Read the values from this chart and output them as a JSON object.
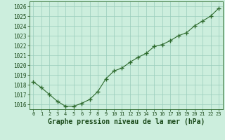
{
  "x": [
    0,
    1,
    2,
    3,
    4,
    5,
    6,
    7,
    8,
    9,
    10,
    11,
    12,
    13,
    14,
    15,
    16,
    17,
    18,
    19,
    20,
    21,
    22,
    23
  ],
  "y": [
    1018.3,
    1017.7,
    1017.0,
    1016.3,
    1015.8,
    1015.8,
    1016.1,
    1016.5,
    1017.3,
    1018.6,
    1019.4,
    1019.7,
    1020.3,
    1020.8,
    1021.2,
    1021.9,
    1022.1,
    1022.5,
    1023.0,
    1023.3,
    1024.0,
    1024.5,
    1025.0,
    1025.8
  ],
  "xlabel": "Graphe pression niveau de la mer (hPa)",
  "ylim": [
    1015.5,
    1026.5
  ],
  "xlim": [
    -0.5,
    23.5
  ],
  "yticks": [
    1016,
    1017,
    1018,
    1019,
    1020,
    1021,
    1022,
    1023,
    1024,
    1025,
    1026
  ],
  "xticks": [
    0,
    1,
    2,
    3,
    4,
    5,
    6,
    7,
    8,
    9,
    10,
    11,
    12,
    13,
    14,
    15,
    16,
    17,
    18,
    19,
    20,
    21,
    22,
    23
  ],
  "line_color": "#2d6a2d",
  "marker_color": "#2d6a2d",
  "bg_color": "#cceedd",
  "grid_color": "#99ccbb",
  "xlabel_color": "#1a4a1a",
  "tick_color": "#1a4a1a",
  "spine_color": "#2d6a2d",
  "xtick_fontsize": 5.0,
  "ytick_fontsize": 5.5,
  "xlabel_fontsize": 7.0
}
